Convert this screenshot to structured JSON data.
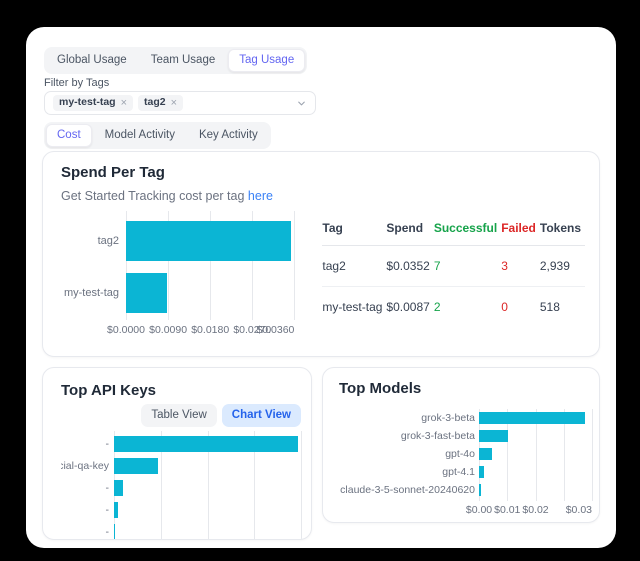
{
  "colors": {
    "bar_cyan": "#0bb5d4",
    "accent_purple": "#6366f1",
    "link_blue": "#3b82f6",
    "success_green": "#16a34a",
    "fail_red": "#dc2626",
    "chart_view_bg": "#dbeafe",
    "chart_view_text": "#2563eb"
  },
  "header": {
    "tabs": [
      {
        "label": "Global Usage",
        "active": false
      },
      {
        "label": "Team Usage",
        "active": false
      },
      {
        "label": "Tag Usage",
        "active": true
      }
    ]
  },
  "filter": {
    "label": "Filter by Tags",
    "chips": [
      {
        "label": "my-test-tag"
      },
      {
        "label": "tag2"
      }
    ],
    "remove_icon": "×"
  },
  "view_tabs": [
    {
      "label": "Cost",
      "active": true
    },
    {
      "label": "Model Activity",
      "active": false
    },
    {
      "label": "Key Activity",
      "active": false
    }
  ],
  "spend_panel": {
    "title": "Spend Per Tag",
    "subtitle_text": "Get Started Tracking cost per tag",
    "subtitle_link_text": "here",
    "table": {
      "headers": [
        {
          "label": "Tag",
          "color": "default"
        },
        {
          "label": "Spend",
          "color": "default"
        },
        {
          "label": "Successful",
          "color": "green"
        },
        {
          "label": "Failed",
          "color": "red"
        },
        {
          "label": "Tokens",
          "color": "default"
        }
      ],
      "rows": [
        {
          "tag": "tag2",
          "spend": "$0.0352",
          "successful": "7",
          "failed": "3",
          "tokens": "2,939"
        },
        {
          "tag": "my-test-tag",
          "spend": "$0.0087",
          "successful": "2",
          "failed": "0",
          "tokens": "518"
        }
      ]
    }
  },
  "top_api_keys": {
    "title": "Top API Keys",
    "view_buttons": [
      {
        "label": "Table View",
        "active": false
      },
      {
        "label": "Chart View",
        "active": true
      }
    ]
  },
  "top_models": {
    "title": "Top Models"
  },
  "chart_data": [
    {
      "id": "spend-per-tag",
      "type": "bar",
      "orientation": "horizontal",
      "title": "Spend Per Tag",
      "categories": [
        "tag2",
        "my-test-tag"
      ],
      "values": [
        0.0352,
        0.0087
      ],
      "xlim": [
        0,
        0.036
      ],
      "x_ticks": [
        {
          "label": "$0.0000",
          "pos": 0
        },
        {
          "label": "$0.0090",
          "pos": 25
        },
        {
          "label": "$0.0180",
          "pos": 50
        },
        {
          "label": "$0.0270",
          "pos": 75
        },
        {
          "label": "$0.0360",
          "pos": 100,
          "align": "end"
        }
      ],
      "grid": true,
      "legend": "none",
      "bar_color": "#0bb5d4"
    },
    {
      "id": "top-api-keys",
      "type": "bar",
      "orientation": "horizontal",
      "title": "Top API Keys",
      "categories": [
        "-",
        "pecial-qa-key",
        "-",
        "-",
        "-"
      ],
      "values": [
        0.0355,
        0.0085,
        0.0017,
        0.0007,
        0.00015
      ],
      "xlim": [
        0,
        0.036
      ],
      "x_ticks": [],
      "grid": true,
      "legend": "none",
      "bar_color": "#0bb5d4",
      "note": "x axis labels clipped by panel edge"
    },
    {
      "id": "top-models",
      "type": "bar",
      "orientation": "horizontal",
      "title": "Top Models",
      "categories": [
        "grok-3-beta",
        "grok-3-fast-beta",
        "gpt-4o",
        "gpt-4.1",
        "claude-3-5-sonnet-20240620"
      ],
      "values": [
        0.0295,
        0.008,
        0.0037,
        0.0013,
        0.0005
      ],
      "xlim": [
        0,
        0.0315
      ],
      "x_ticks": [
        {
          "label": "$0.00",
          "pos": 0
        },
        {
          "label": "$0.01",
          "pos": 25
        },
        {
          "label": "$0.02",
          "pos": 50
        },
        {
          "label": "$0.03",
          "pos": 100,
          "align": "end"
        }
      ],
      "grid": true,
      "legend": "none",
      "bar_color": "#0bb5d4"
    }
  ]
}
